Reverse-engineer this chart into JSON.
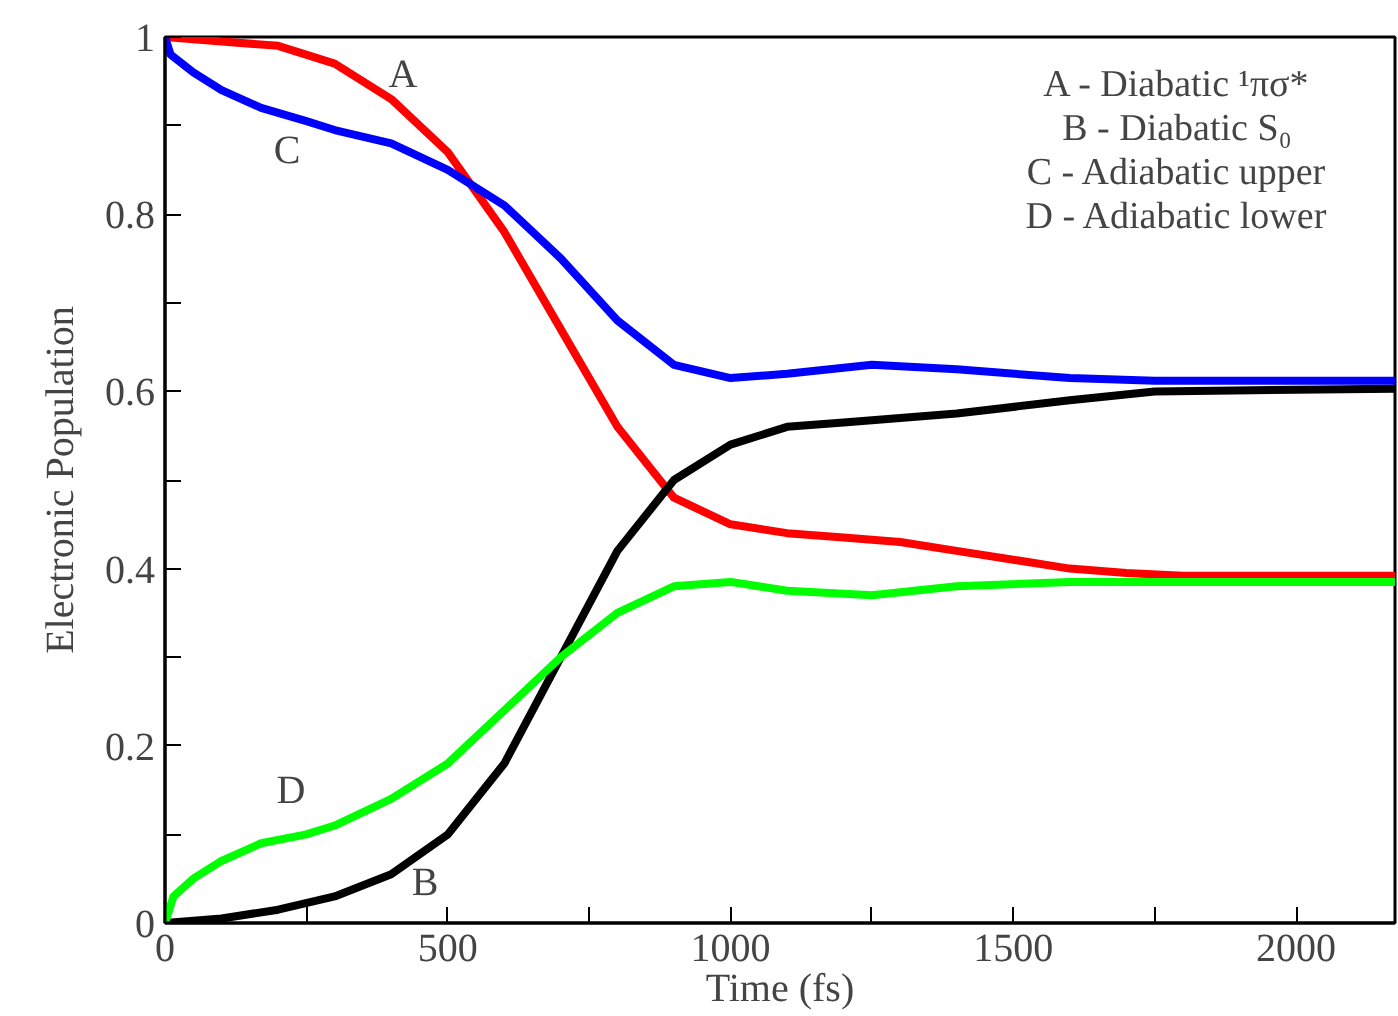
{
  "chart_data": {
    "type": "line",
    "xlabel": "Time (fs)",
    "ylabel": "Electronic Population",
    "xlim": [
      0,
      2175
    ],
    "ylim": [
      0,
      1
    ],
    "xticks": [
      0,
      {
        "value": 250,
        "label": null
      },
      500,
      {
        "value": 750,
        "label": null
      },
      1000,
      {
        "value": 1250,
        "label": null
      },
      1500,
      {
        "value": 1750,
        "label": null
      },
      2000
    ],
    "yticks": [
      0,
      {
        "value": 0.1,
        "label": null
      },
      0.2,
      {
        "value": 0.3,
        "label": null
      },
      0.4,
      {
        "value": 0.5,
        "label": null
      },
      0.6,
      {
        "value": 0.7,
        "label": null
      },
      0.8,
      {
        "value": 0.9,
        "label": null
      },
      1
    ],
    "grid": false,
    "marker": "none",
    "line_style": "solid",
    "series": [
      {
        "color": "#ff0000",
        "x": [
          0,
          100,
          200,
          300,
          400,
          500,
          600,
          700,
          800,
          900,
          1000,
          1100,
          1200,
          1300,
          1400,
          1500,
          1600,
          1700,
          1800,
          2175
        ],
        "values": [
          1.0,
          0.995,
          0.99,
          0.97,
          0.93,
          0.87,
          0.78,
          0.67,
          0.56,
          0.48,
          0.45,
          0.44,
          0.435,
          0.43,
          0.42,
          0.41,
          0.4,
          0.395,
          0.392,
          0.392
        ]
      },
      {
        "color": "#000000",
        "x": [
          0,
          100,
          200,
          300,
          400,
          500,
          600,
          700,
          800,
          900,
          1000,
          1100,
          1200,
          1400,
          1600,
          1750,
          2175
        ],
        "values": [
          0.0,
          0.005,
          0.015,
          0.03,
          0.055,
          0.1,
          0.18,
          0.3,
          0.42,
          0.5,
          0.54,
          0.56,
          0.565,
          0.575,
          0.59,
          0.6,
          0.603
        ]
      },
      {
        "color": "#0000ff",
        "x": [
          0,
          10,
          50,
          100,
          170,
          250,
          300,
          400,
          500,
          600,
          700,
          800,
          900,
          1000,
          1100,
          1250,
          1400,
          1600,
          1750,
          2175
        ],
        "values": [
          1.0,
          0.98,
          0.96,
          0.94,
          0.92,
          0.905,
          0.895,
          0.88,
          0.85,
          0.81,
          0.75,
          0.68,
          0.63,
          0.615,
          0.62,
          0.63,
          0.625,
          0.615,
          0.612,
          0.612
        ]
      },
      {
        "color": "#00ff00",
        "x": [
          0,
          15,
          50,
          100,
          170,
          250,
          300,
          400,
          500,
          600,
          700,
          800,
          900,
          1000,
          1100,
          1250,
          1400,
          1600,
          2175
        ],
        "values": [
          0.0,
          0.03,
          0.05,
          0.07,
          0.09,
          0.1,
          0.11,
          0.14,
          0.18,
          0.24,
          0.3,
          0.35,
          0.38,
          0.385,
          0.375,
          0.37,
          0.38,
          0.385,
          0.385
        ]
      }
    ],
    "annotations": [
      "A",
      "B",
      "C",
      "D",
      "A - Diabatic ¹πσ*",
      "B - Diabatic S₀",
      "C - Adiabatic upper",
      "D - Adiabatic lower"
    ]
  }
}
